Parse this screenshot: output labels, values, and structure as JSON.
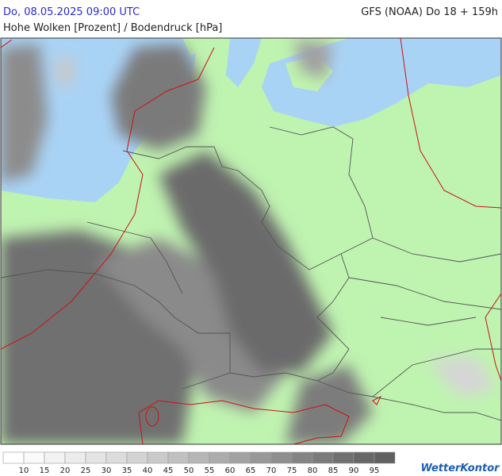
{
  "header": {
    "datetime": "Do, 08.05.2025 09:00 UTC",
    "model": "GFS (NOAA) Do 18 + 159h",
    "title": "Hohe Wolken [Prozent] / Bodendruck [hPa]"
  },
  "legend": {
    "labels": [
      10,
      15,
      20,
      25,
      30,
      35,
      40,
      45,
      50,
      55,
      60,
      65,
      70,
      75,
      80,
      85,
      90,
      95
    ],
    "colors": [
      "#ffffff",
      "#fafafa",
      "#f3f3f3",
      "#ececec",
      "#e4e4e4",
      "#dcdcdc",
      "#d3d3d3",
      "#cacaca",
      "#c0c0c0",
      "#b6b6b6",
      "#acacac",
      "#a2a2a2",
      "#989898",
      "#8e8e8e",
      "#848484",
      "#7a7a7a",
      "#707070",
      "#676767",
      "#606060"
    ]
  },
  "brand": "WetterKontor"
}
